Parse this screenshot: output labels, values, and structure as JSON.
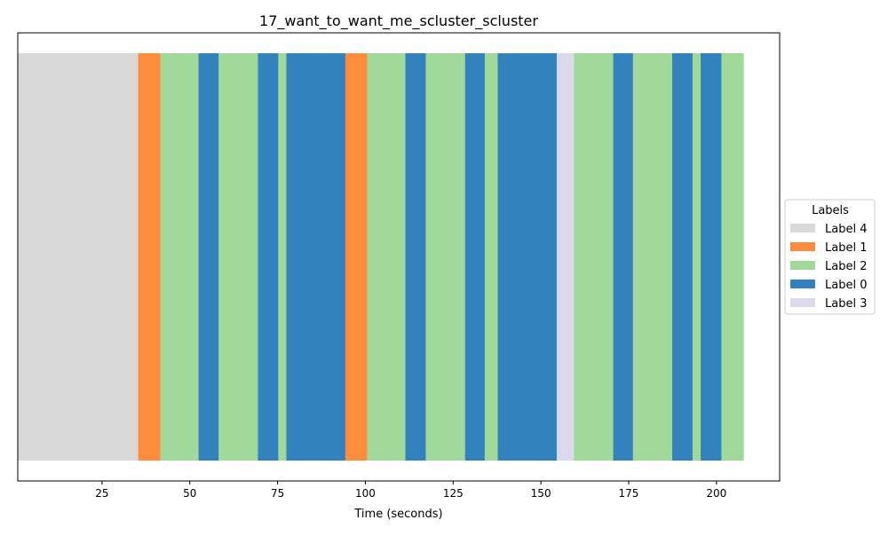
{
  "chart_data": {
    "type": "bar",
    "orientation": "horizontal-timeline",
    "title": "17_want_to_want_me_scluster_scluster",
    "xlabel": "Time (seconds)",
    "ylabel": "",
    "xlim": [
      1,
      218
    ],
    "xticks": [
      25,
      50,
      75,
      100,
      125,
      150,
      175,
      200
    ],
    "grid": false,
    "legend": {
      "title": "Labels",
      "placement": "center-right-outside",
      "entries": [
        {
          "name": "Label 4",
          "color": "#d9d9d9"
        },
        {
          "name": "Label 1",
          "color": "#fd8d3c"
        },
        {
          "name": "Label 2",
          "color": "#a1d99b"
        },
        {
          "name": "Label 0",
          "color": "#3182bd"
        },
        {
          "name": "Label 3",
          "color": "#dadaeb"
        }
      ]
    },
    "segments": [
      {
        "start": 1.0,
        "end": 35.3,
        "label": "Label 4"
      },
      {
        "start": 35.3,
        "end": 41.6,
        "label": "Label 1"
      },
      {
        "start": 41.6,
        "end": 52.5,
        "label": "Label 2"
      },
      {
        "start": 52.5,
        "end": 58.2,
        "label": "Label 0"
      },
      {
        "start": 58.2,
        "end": 69.4,
        "label": "Label 2"
      },
      {
        "start": 69.4,
        "end": 75.2,
        "label": "Label 0"
      },
      {
        "start": 75.2,
        "end": 77.5,
        "label": "Label 2"
      },
      {
        "start": 77.5,
        "end": 94.3,
        "label": "Label 0"
      },
      {
        "start": 94.3,
        "end": 100.5,
        "label": "Label 1"
      },
      {
        "start": 100.5,
        "end": 111.4,
        "label": "Label 2"
      },
      {
        "start": 111.4,
        "end": 117.2,
        "label": "Label 0"
      },
      {
        "start": 117.2,
        "end": 128.4,
        "label": "Label 2"
      },
      {
        "start": 128.4,
        "end": 134.0,
        "label": "Label 0"
      },
      {
        "start": 134.0,
        "end": 137.7,
        "label": "Label 2"
      },
      {
        "start": 137.7,
        "end": 154.5,
        "label": "Label 0"
      },
      {
        "start": 154.5,
        "end": 159.4,
        "label": "Label 3"
      },
      {
        "start": 159.4,
        "end": 170.6,
        "label": "Label 2"
      },
      {
        "start": 170.6,
        "end": 176.2,
        "label": "Label 0"
      },
      {
        "start": 176.2,
        "end": 187.4,
        "label": "Label 2"
      },
      {
        "start": 187.4,
        "end": 193.2,
        "label": "Label 0"
      },
      {
        "start": 193.2,
        "end": 195.5,
        "label": "Label 2"
      },
      {
        "start": 195.5,
        "end": 201.4,
        "label": "Label 0"
      },
      {
        "start": 201.4,
        "end": 207.7,
        "label": "Label 2"
      }
    ]
  }
}
